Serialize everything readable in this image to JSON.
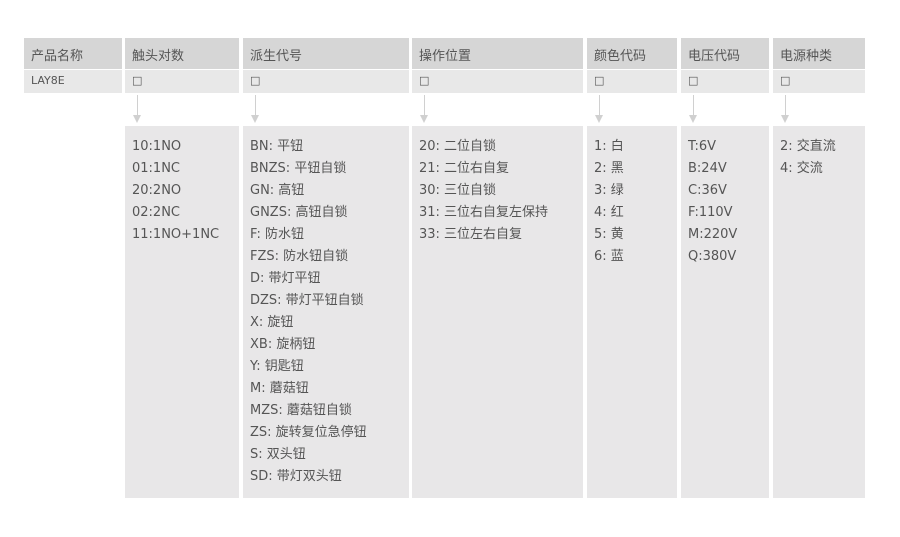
{
  "headers": [
    "产品名称",
    "触头对数",
    "派生代号",
    "操作位置",
    "颜色代码",
    "电压代码",
    "电源种类"
  ],
  "codes": [
    "LAY8E",
    "□",
    "□",
    "□",
    "□",
    "□",
    "□"
  ],
  "details": {
    "contacts": [
      "10:1NO",
      "01:1NC",
      "20:2NO",
      "02:2NC",
      "11:1NO+1NC"
    ],
    "derivative": [
      "BN: 平钮",
      "BNZS: 平钮自锁",
      "GN: 高钮",
      "GNZS: 高钮自锁",
      "F: 防水钮",
      "FZS: 防水钮自锁",
      "D: 带灯平钮",
      "DZS: 带灯平钮自锁",
      "X: 旋钮",
      "XB: 旋柄钮",
      "Y: 钥匙钮",
      "M: 蘑菇钮",
      "MZS: 蘑菇钮自锁",
      "ZS: 旋转复位急停钮",
      "S: 双头钮",
      "SD: 带灯双头钮"
    ],
    "operation": [
      "20: 二位自锁",
      "21: 二位右自复",
      "30: 三位自锁",
      "31: 三位右自复左保持",
      "33: 三位左右自复"
    ],
    "color": [
      "1: 白",
      "2: 黑",
      "3: 绿",
      "4: 红",
      "5: 黄",
      "6: 蓝"
    ],
    "voltage": [
      "T:6V",
      "B:24V",
      "C:36V",
      "F:110V",
      "M:220V",
      "Q:380V"
    ],
    "power": [
      "2: 交直流",
      "4: 交流"
    ]
  }
}
